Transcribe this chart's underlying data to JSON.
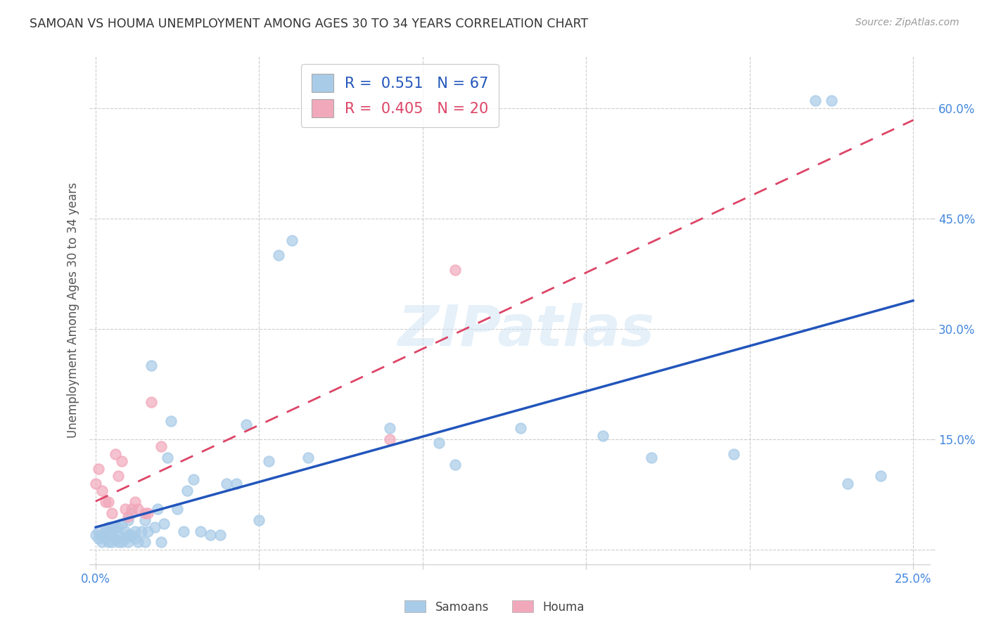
{
  "title": "SAMOAN VS HOUMA UNEMPLOYMENT AMONG AGES 30 TO 34 YEARS CORRELATION CHART",
  "source": "Source: ZipAtlas.com",
  "ylabel": "Unemployment Among Ages 30 to 34 years",
  "xlim": [
    -0.002,
    0.255
  ],
  "ylim": [
    -0.02,
    0.67
  ],
  "x_ticks": [
    0.0,
    0.05,
    0.1,
    0.15,
    0.2,
    0.25
  ],
  "y_ticks": [
    0.0,
    0.15,
    0.3,
    0.45,
    0.6
  ],
  "x_tick_labels": [
    "0.0%",
    "",
    "",
    "",
    "",
    "25.0%"
  ],
  "y_tick_labels": [
    "",
    "15.0%",
    "30.0%",
    "45.0%",
    "60.0%"
  ],
  "legend_blue_r": "0.551",
  "legend_blue_n": "67",
  "legend_pink_r": "0.405",
  "legend_pink_n": "20",
  "samoans_color": "#A8CBE8",
  "houma_color": "#F2A8BB",
  "regression_blue_color": "#2255BB",
  "regression_pink_color": "#DD4466",
  "tick_color": "#4488DD",
  "background_color": "#FFFFFF",
  "watermark": "ZIPatlas",
  "samoans_x": [
    0.0,
    0.001,
    0.001,
    0.002,
    0.002,
    0.003,
    0.003,
    0.004,
    0.004,
    0.004,
    0.005,
    0.005,
    0.005,
    0.006,
    0.006,
    0.007,
    0.007,
    0.007,
    0.008,
    0.008,
    0.009,
    0.009,
    0.01,
    0.01,
    0.01,
    0.011,
    0.011,
    0.012,
    0.012,
    0.013,
    0.014,
    0.015,
    0.015,
    0.016,
    0.017,
    0.018,
    0.019,
    0.02,
    0.021,
    0.022,
    0.023,
    0.025,
    0.027,
    0.028,
    0.03,
    0.032,
    0.035,
    0.038,
    0.04,
    0.043,
    0.046,
    0.05,
    0.053,
    0.056,
    0.06,
    0.065,
    0.09,
    0.105,
    0.11,
    0.13,
    0.155,
    0.17,
    0.195,
    0.22,
    0.225,
    0.23,
    0.24
  ],
  "samoans_y": [
    0.02,
    0.015,
    0.025,
    0.01,
    0.02,
    0.015,
    0.025,
    0.01,
    0.02,
    0.03,
    0.01,
    0.02,
    0.03,
    0.015,
    0.03,
    0.01,
    0.02,
    0.03,
    0.01,
    0.035,
    0.015,
    0.025,
    0.01,
    0.02,
    0.04,
    0.02,
    0.05,
    0.015,
    0.025,
    0.01,
    0.025,
    0.01,
    0.04,
    0.025,
    0.25,
    0.03,
    0.055,
    0.01,
    0.035,
    0.125,
    0.175,
    0.055,
    0.025,
    0.08,
    0.095,
    0.025,
    0.02,
    0.02,
    0.09,
    0.09,
    0.17,
    0.04,
    0.12,
    0.4,
    0.42,
    0.125,
    0.165,
    0.145,
    0.115,
    0.165,
    0.155,
    0.125,
    0.13,
    0.61,
    0.61,
    0.09,
    0.1
  ],
  "houma_x": [
    0.0,
    0.001,
    0.002,
    0.003,
    0.004,
    0.005,
    0.006,
    0.007,
    0.008,
    0.009,
    0.01,
    0.011,
    0.012,
    0.013,
    0.015,
    0.016,
    0.017,
    0.02,
    0.09,
    0.11
  ],
  "houma_y": [
    0.09,
    0.11,
    0.08,
    0.065,
    0.065,
    0.05,
    0.13,
    0.1,
    0.12,
    0.055,
    0.045,
    0.055,
    0.065,
    0.055,
    0.05,
    0.05,
    0.2,
    0.14,
    0.15,
    0.38
  ]
}
